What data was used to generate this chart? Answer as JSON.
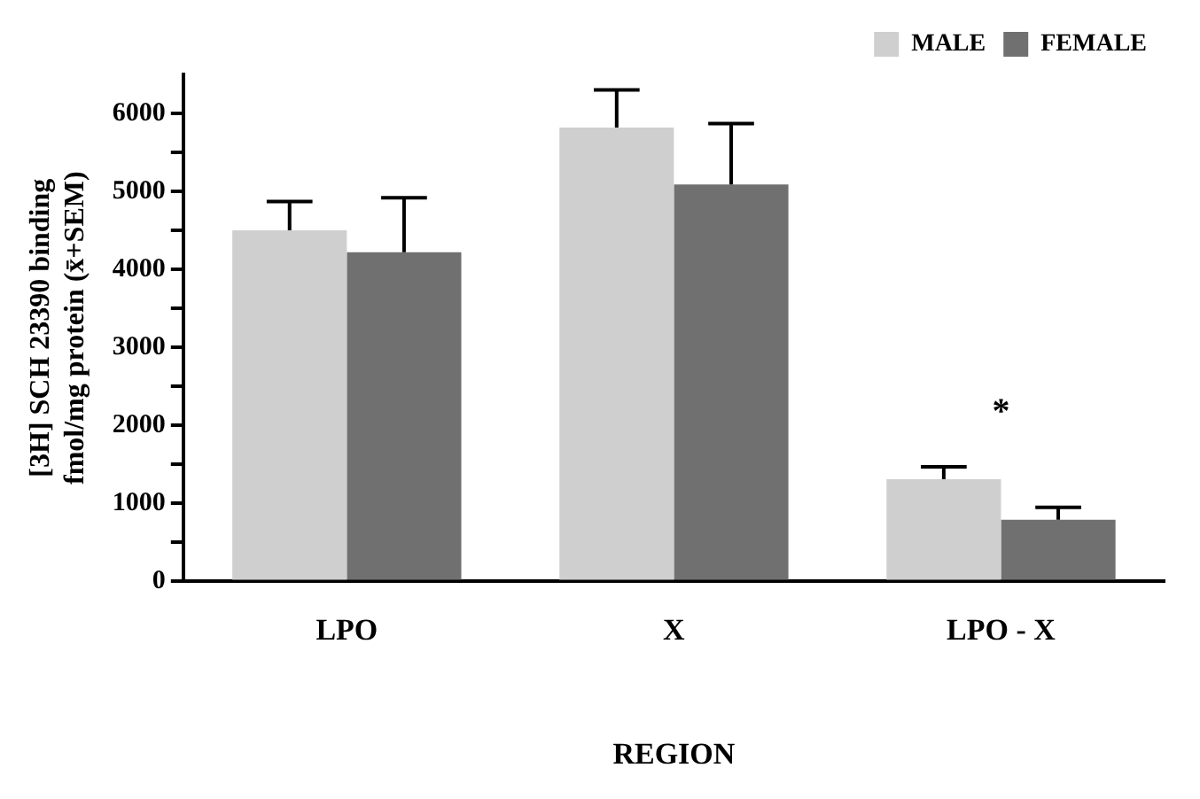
{
  "chart_data": {
    "type": "bar",
    "xlabel": "REGION",
    "ylabel": "[3H] SCH 23390 binding\nfmol/mg protein (x̄+SEM)",
    "categories": [
      "LPO",
      "X",
      "LPO - X"
    ],
    "series": [
      {
        "name": "MALE",
        "color": "#cfcfcf",
        "values": [
          4500,
          5820,
          1310
        ],
        "errors": [
          [
            4500,
            4870
          ],
          [
            5820,
            6300
          ],
          [
            1310,
            1470
          ]
        ]
      },
      {
        "name": "FEMALE",
        "color": "#707070",
        "values": [
          4220,
          5090,
          790
        ],
        "errors": [
          [
            4220,
            4920
          ],
          [
            5090,
            5870
          ],
          [
            790,
            950
          ]
        ]
      }
    ],
    "ylim": [
      0,
      6500
    ],
    "yticks": [
      0,
      {
        "value": 500,
        "label": null
      },
      1000,
      {
        "value": 1500,
        "label": null
      },
      2000,
      {
        "value": 2500,
        "label": null
      },
      3000,
      {
        "value": 3500,
        "label": null
      },
      4000,
      {
        "value": 4500,
        "label": null
      },
      5000,
      {
        "value": 5500,
        "label": null
      },
      6000
    ],
    "annotations": [
      "*"
    ],
    "grid": false,
    "legend": "top right"
  }
}
